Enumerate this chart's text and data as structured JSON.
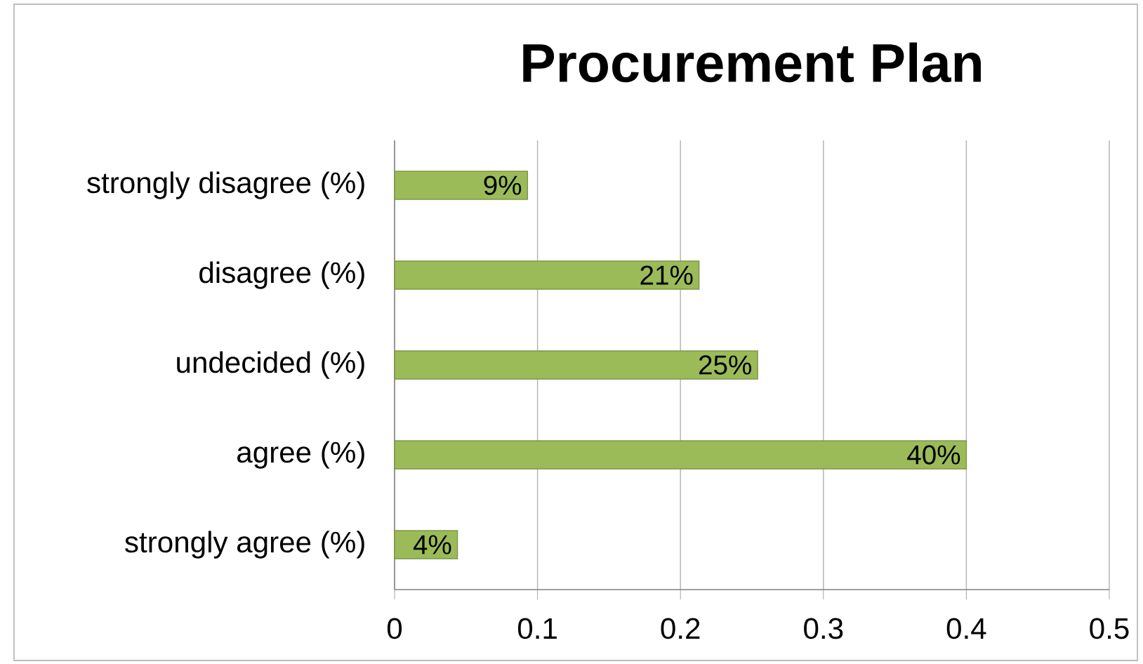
{
  "chart_data": {
    "type": "bar",
    "orientation": "horizontal",
    "title": "Procurement Plan",
    "categories": [
      "strongly disagree (%)",
      "disagree (%)",
      "undecided (%)",
      "agree (%)",
      "strongly agree (%)"
    ],
    "values": [
      0.093,
      0.213,
      0.254,
      0.4,
      0.044
    ],
    "value_labels": [
      "9%",
      "21%",
      "25%",
      "40%",
      "4%"
    ],
    "color": "#9bbb59",
    "xlim": [
      0,
      0.5
    ],
    "xticks": [
      0,
      0.1,
      0.2,
      0.3,
      0.4,
      0.5
    ],
    "grid": "x"
  }
}
